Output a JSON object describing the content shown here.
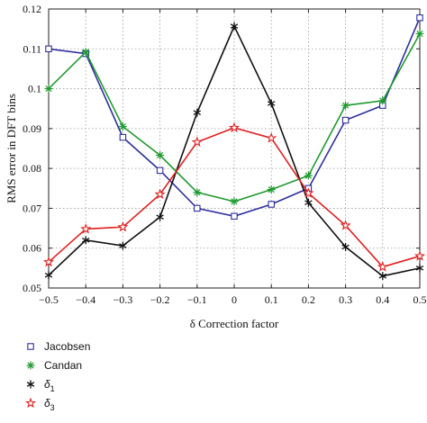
{
  "chart_data": {
    "type": "line",
    "xlabel": "δ Correction factor",
    "ylabel": "RMS error in DFT bins",
    "xlim": [
      -0.5,
      0.5
    ],
    "ylim": [
      0.05,
      0.12
    ],
    "x": [
      -0.5,
      -0.4,
      -0.3,
      -0.2,
      -0.1,
      0,
      0.1,
      0.2,
      0.3,
      0.4,
      0.5
    ],
    "xticks": [
      "-0.5",
      "-0.4",
      "-0.3",
      "-0.2",
      "-0.1",
      "0",
      "0.1",
      "0.2",
      "0.3",
      "0.4",
      "0.5"
    ],
    "yticks": [
      "0.05",
      "0.06",
      "0.07",
      "0.08",
      "0.09",
      "0.1",
      "0.11",
      "0.12"
    ],
    "ytick_values": [
      0.05,
      0.06,
      0.07,
      0.08,
      0.09,
      0.1,
      0.11,
      0.12
    ],
    "grid": "dotted",
    "legend_position": "below-left",
    "series": [
      {
        "name": "Jacobsen",
        "marker": "square",
        "color": "#2e2e9e",
        "values": [
          0.11,
          0.1088,
          0.0878,
          0.0795,
          0.07,
          0.068,
          0.071,
          0.075,
          0.0921,
          0.0958,
          0.1178
        ]
      },
      {
        "name": "Candan",
        "marker": "asterisk",
        "color": "#1f9a2f",
        "values": [
          0.1,
          0.1092,
          0.0905,
          0.0833,
          0.074,
          0.0717,
          0.0747,
          0.0782,
          0.0958,
          0.097,
          0.1138
        ]
      },
      {
        "name": "δ",
        "subscript": "1",
        "marker": "star6",
        "color": "#111111",
        "values": [
          0.0532,
          0.062,
          0.0606,
          0.0678,
          0.094,
          0.1157,
          0.0963,
          0.0714,
          0.0603,
          0.053,
          0.055
        ]
      },
      {
        "name": "δ",
        "subscript": "3",
        "marker": "star5",
        "color": "#e02020",
        "values": [
          0.0565,
          0.0648,
          0.0653,
          0.0735,
          0.0866,
          0.0902,
          0.0876,
          0.0738,
          0.0657,
          0.0553,
          0.058
        ]
      }
    ]
  }
}
